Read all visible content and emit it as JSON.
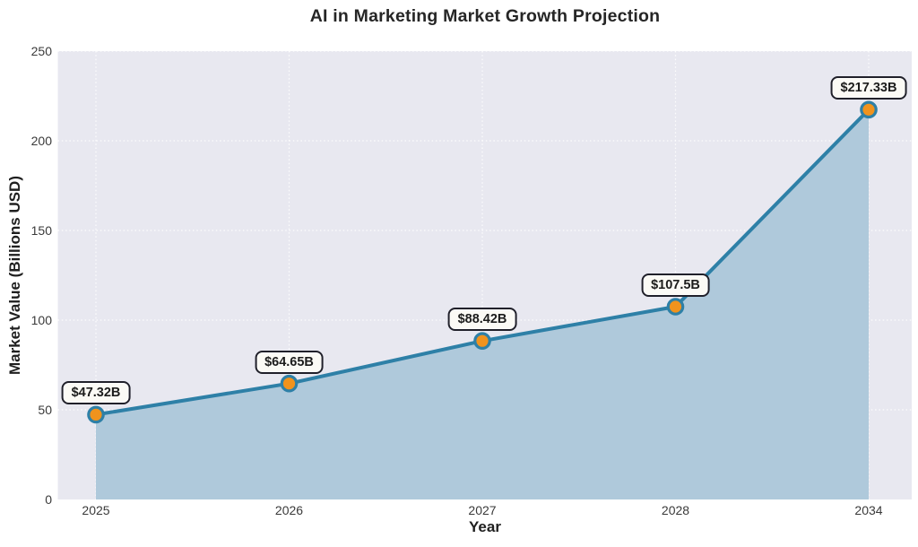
{
  "title": "AI in Marketing Market Growth Projection",
  "chart_data": {
    "type": "area",
    "title": "AI in Marketing Market Growth Projection",
    "xlabel": "Year",
    "ylabel": "Market Value (Billions USD)",
    "categories": [
      "2025",
      "2026",
      "2027",
      "2028",
      "2034"
    ],
    "values": [
      47.32,
      64.65,
      88.42,
      107.5,
      217.33
    ],
    "point_labels": [
      "$47.32B",
      "$64.65B",
      "$88.42B",
      "$107.5B",
      "$217.33B"
    ],
    "ylim": [
      0,
      250
    ],
    "yticks": [
      0,
      50,
      100,
      150,
      200,
      250
    ],
    "grid": "on",
    "legend": "none",
    "colors": {
      "page_bg": "#ffffff",
      "plot_bg": "#e8e8f0",
      "grid": "#ffffff",
      "line": "#2e80a7",
      "area_fill": "#afc9db",
      "marker_fill": "#f0931d",
      "marker_edge": "#2e80a7",
      "annotation_bg": "#fbfaf5",
      "annotation_border": "#20202a",
      "title_text": "#262626",
      "tick_text": "#3a3a3a"
    }
  }
}
